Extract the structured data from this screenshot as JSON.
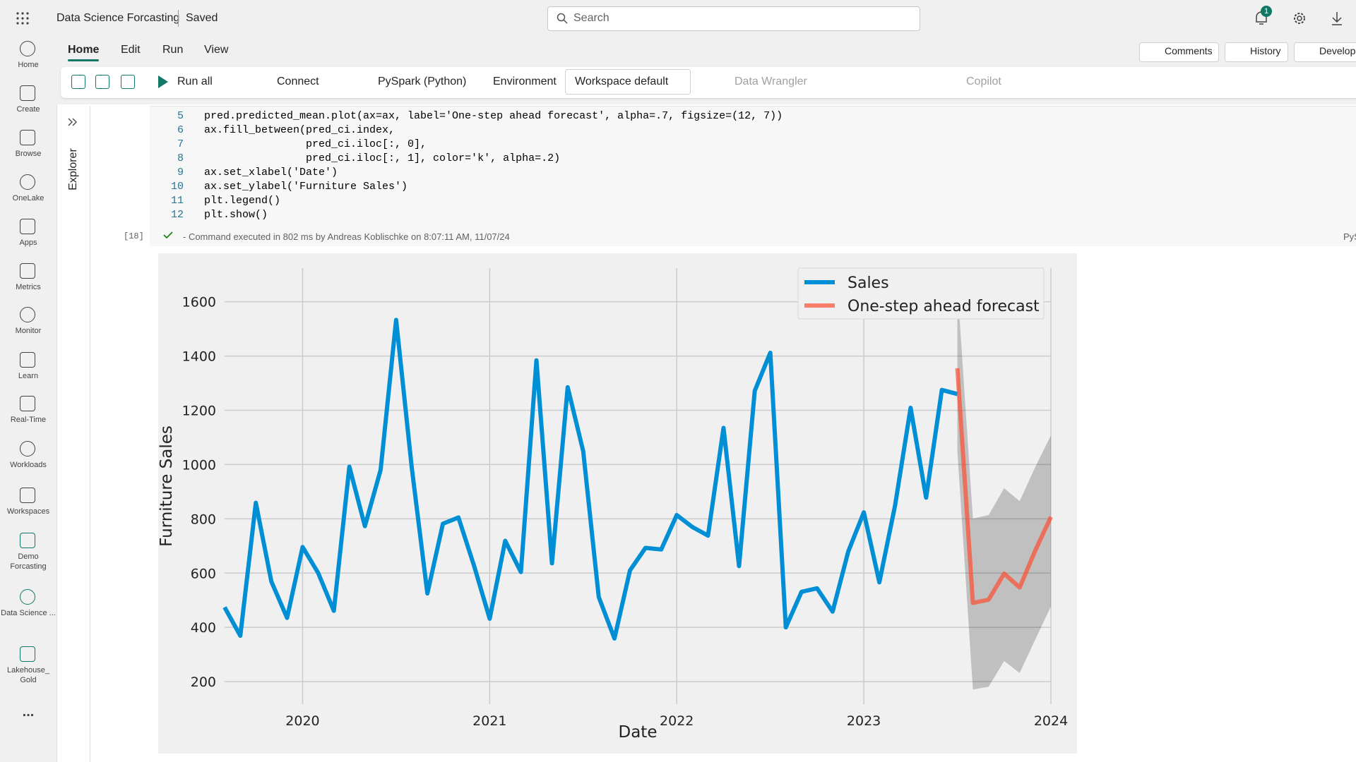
{
  "app_bar": {
    "title": "Data Science Forcasting",
    "status": "Saved",
    "search_placeholder": "Search",
    "notification_count": 1
  },
  "nav": [
    "Home",
    "Create",
    "Browse",
    "OneLake",
    "Apps",
    "Metrics",
    "Monitor",
    "Learn",
    "Real-Time",
    "Workloads",
    "Workspaces",
    "Demo Forcasting",
    "Data Science ...",
    "Lakehouse_ Gold",
    "..."
  ],
  "tabs": [
    "Home",
    "Edit",
    "Run",
    "View"
  ],
  "header_buttons": [
    "Comments",
    "History",
    "Develop"
  ],
  "toolbar": {
    "run_all": "Run all",
    "connect": "Connect",
    "language": "PySpark (Python)",
    "environment": "Environment",
    "workspace": "Workspace default",
    "data_wrangler": "Data Wrangler",
    "copilot": "Copilot"
  },
  "explorer": "Explorer",
  "cell": {
    "lines": [
      {
        "number": 5,
        "code": "pred.predicted_mean.plot(ax=ax, label='One-step ahead forecast', alpha=.7, figsize=(12, 7))"
      },
      {
        "number": 6,
        "code": "ax.fill_between(pred_ci.index,"
      },
      {
        "number": 7,
        "code": "                pred_ci.iloc[:, 0],"
      },
      {
        "number": 8,
        "code": "                pred_ci.iloc[:, 1], color='k', alpha=.2)"
      },
      {
        "number": 9,
        "code": "ax.set_xlabel('Date')"
      },
      {
        "number": 10,
        "code": "ax.set_ylabel('Furniture Sales')"
      },
      {
        "number": 11,
        "code": "plt.legend()"
      },
      {
        "number": 12,
        "code": "plt.show()"
      }
    ],
    "execution_count": "[18]",
    "status": "- Command executed in 802 ms by Andreas Koblischke on 8:07:11 AM, 11/07/24",
    "language": "PyS"
  },
  "chart_data": {
    "type": "line",
    "x_label": "Date",
    "y_label": "Furniture Sales",
    "xlim": [
      2019.583,
      2024
    ],
    "xticks": [
      2020,
      2021,
      2022,
      2023,
      2024
    ],
    "ylim": [
      117,
      1724
    ],
    "yticks": [
      200,
      400,
      600,
      800,
      1000,
      1200,
      1400,
      1600
    ],
    "grid": true,
    "legend": "upper right",
    "series": [
      {
        "name": "Sales",
        "color": "#008fd5",
        "x": [
          2019.583,
          2019.667,
          2019.75,
          2019.833,
          2019.917,
          2020,
          2020.083,
          2020.167,
          2020.25,
          2020.333,
          2020.417,
          2020.5,
          2020.583,
          2020.667,
          2020.75,
          2020.833,
          2020.917,
          2021,
          2021.083,
          2021.167,
          2021.25,
          2021.333,
          2021.417,
          2021.5,
          2021.583,
          2021.667,
          2021.75,
          2021.833,
          2021.917,
          2022,
          2022.083,
          2022.167,
          2022.25,
          2022.333,
          2022.417,
          2022.5,
          2022.583,
          2022.667,
          2022.75,
          2022.833,
          2022.917,
          2023,
          2023.083,
          2023.167,
          2023.25,
          2023.333,
          2023.417,
          2023.5
        ],
        "values": [
          474,
          369,
          859,
          569,
          435,
          696,
          601,
          461,
          992,
          773,
          980,
          1533,
          992,
          525,
          782,
          805,
          626,
          432,
          719,
          604,
          1384,
          636,
          1285,
          1049,
          512,
          359,
          610,
          693,
          687,
          814,
          770,
          738,
          1135,
          626,
          1272,
          1412,
          400,
          531,
          544,
          458,
          680,
          824,
          566,
          849,
          1209,
          878,
          1275,
          1260
        ]
      },
      {
        "name": "One-step ahead forecast",
        "color": "#fc4f30",
        "alpha": 0.7,
        "x": [
          2023.5,
          2023.583,
          2023.667,
          2023.75,
          2023.833,
          2023.917,
          2024
        ],
        "values": [
          1355,
          490,
          502,
          598,
          547,
          684,
          807
        ]
      }
    ],
    "band": {
      "color": "#000000",
      "alpha": 0.2,
      "x": [
        2023.5,
        2023.583,
        2023.667,
        2023.75,
        2023.833,
        2023.917,
        2024
      ],
      "lower": [
        1050,
        171,
        181,
        276,
        232,
        356,
        477
      ],
      "upper": [
        1660,
        801,
        814,
        913,
        865,
        992,
        1107
      ]
    }
  }
}
